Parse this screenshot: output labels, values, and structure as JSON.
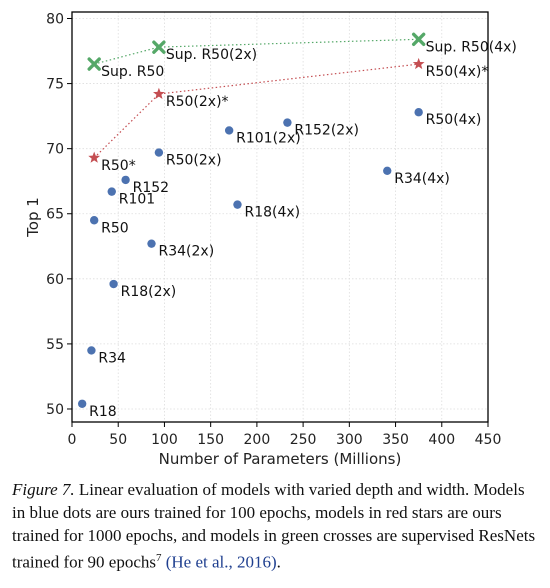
{
  "chart_data": {
    "type": "scatter",
    "xlabel": "Number of Parameters (Millions)",
    "ylabel": "Top 1",
    "xlim": [
      0,
      450
    ],
    "ylim": [
      49,
      80.5
    ],
    "xticks": [
      0,
      50,
      100,
      150,
      200,
      250,
      300,
      350,
      400,
      450
    ],
    "yticks": [
      50,
      55,
      60,
      65,
      70,
      75,
      80
    ],
    "grid": true,
    "series": [
      {
        "marker": "dot",
        "color": "#4c72b0",
        "connected": false,
        "points": [
          {
            "label": "R18",
            "x": 11,
            "y": 50.4
          },
          {
            "label": "R34",
            "x": 21,
            "y": 54.5
          },
          {
            "label": "R50",
            "x": 24,
            "y": 64.5
          },
          {
            "label": "R101",
            "x": 43,
            "y": 66.7
          },
          {
            "label": "R152",
            "x": 58,
            "y": 67.6
          },
          {
            "label": "R18(2x)",
            "x": 45,
            "y": 59.6
          },
          {
            "label": "R34(2x)",
            "x": 86,
            "y": 62.7
          },
          {
            "label": "R50(2x)",
            "x": 94,
            "y": 69.7
          },
          {
            "label": "R101(2x)",
            "x": 170,
            "y": 71.4
          },
          {
            "label": "R152(2x)",
            "x": 233,
            "y": 72.0
          },
          {
            "label": "R18(4x)",
            "x": 179,
            "y": 65.7
          },
          {
            "label": "R34(4x)",
            "x": 341,
            "y": 68.3
          },
          {
            "label": "R50(4x)",
            "x": 375,
            "y": 72.8
          }
        ]
      },
      {
        "marker": "star",
        "color": "#c44e52",
        "connected": true,
        "points": [
          {
            "label": "R50*",
            "x": 24,
            "y": 69.3
          },
          {
            "label": "R50(2x)*",
            "x": 94,
            "y": 74.2
          },
          {
            "label": "R50(4x)*",
            "x": 375,
            "y": 76.5
          }
        ]
      },
      {
        "marker": "cross",
        "color": "#55a868",
        "connected": true,
        "points": [
          {
            "label": "Sup. R50",
            "x": 24,
            "y": 76.5
          },
          {
            "label": "Sup. R50(2x)",
            "x": 94,
            "y": 77.8
          },
          {
            "label": "Sup. R50(4x)",
            "x": 375,
            "y": 78.4
          }
        ]
      }
    ]
  },
  "caption": {
    "figure_label": "Figure 7.",
    "text": " Linear evaluation of models with varied depth and width. Models in blue dots are ours trained for 100 epochs, models in red stars are ours trained for 1000 epochs, and models in green crosses are supervised ResNets trained for 90 epochs",
    "footnote": "7",
    "citation": "(He et al., 2016)",
    "end": "."
  }
}
